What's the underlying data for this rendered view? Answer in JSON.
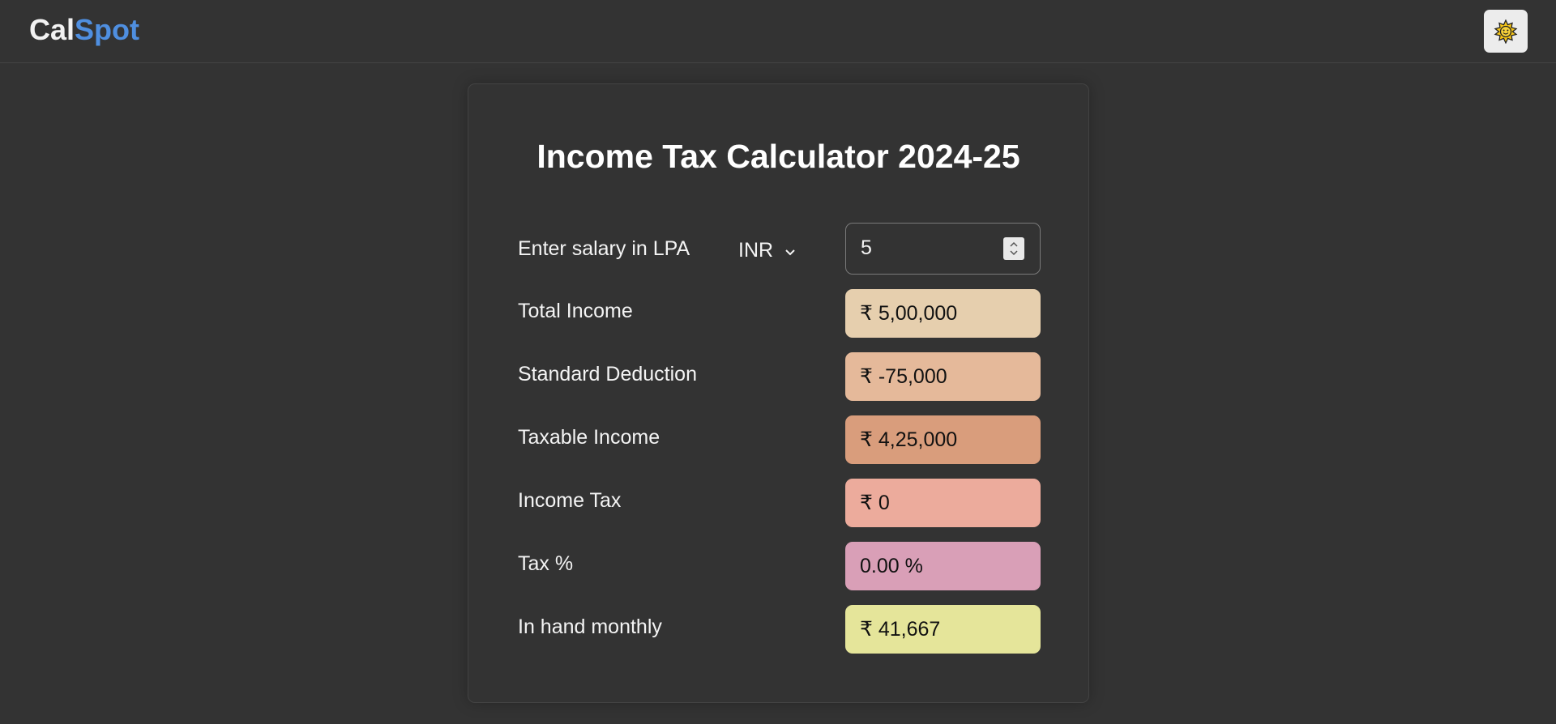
{
  "header": {
    "logo_part1": "Cal",
    "logo_part2": "Spot",
    "theme_toggle_icon": "sun-icon"
  },
  "calculator": {
    "title": "Income Tax Calculator 2024-25",
    "salary": {
      "label": "Enter salary in LPA",
      "currency": "INR",
      "value": "5"
    },
    "rows": [
      {
        "label": "Total Income",
        "value": "₹ 5,00,000",
        "color": "#e6cfae"
      },
      {
        "label": "Standard Deduction",
        "value": "₹ -75,000",
        "color": "#e5b99a"
      },
      {
        "label": "Taxable Income",
        "value": "₹ 4,25,000",
        "color": "#d99d7c"
      },
      {
        "label": "Income Tax",
        "value": "₹ 0",
        "color": "#ecab9c"
      },
      {
        "label": "Tax %",
        "value": "0.00 %",
        "color": "#d99fb7"
      },
      {
        "label": "In hand monthly",
        "value": "₹ 41,667",
        "color": "#e5e59a"
      }
    ]
  },
  "colors": {
    "background": "#333333",
    "accent": "#4f8fe0",
    "text": "#ffffff"
  }
}
